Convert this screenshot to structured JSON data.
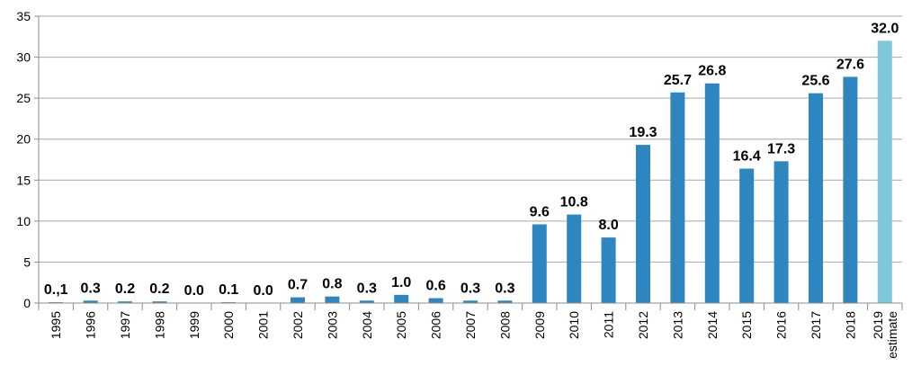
{
  "chart_data": {
    "type": "bar",
    "title": "",
    "xlabel": "",
    "ylabel": "",
    "ylim": [
      0,
      35
    ],
    "yticks": [
      "0",
      "5",
      "10",
      "15",
      "20",
      "25",
      "30",
      "35"
    ],
    "grid": true,
    "categories": [
      [
        "1995"
      ],
      [
        "1996"
      ],
      [
        "1997"
      ],
      [
        "1998"
      ],
      [
        "1999"
      ],
      [
        "2000"
      ],
      [
        "2001"
      ],
      [
        "2002"
      ],
      [
        "2003"
      ],
      [
        "2004"
      ],
      [
        "2005"
      ],
      [
        "2006"
      ],
      [
        "2007"
      ],
      [
        "2008"
      ],
      [
        "2009"
      ],
      [
        "2010"
      ],
      [
        "2011"
      ],
      [
        "2012"
      ],
      [
        "2013"
      ],
      [
        "2014"
      ],
      [
        "2015"
      ],
      [
        "2016"
      ],
      [
        "2017"
      ],
      [
        "2018"
      ],
      [
        "2019",
        "estimate"
      ]
    ],
    "values": [
      0.1,
      0.3,
      0.2,
      0.2,
      0.0,
      0.1,
      0.0,
      0.7,
      0.8,
      0.3,
      1.0,
      0.6,
      0.3,
      0.3,
      9.6,
      10.8,
      8.0,
      19.3,
      25.7,
      26.8,
      16.4,
      17.3,
      25.6,
      27.6,
      32.0
    ],
    "labels": [
      "0.,1",
      "0.3",
      "0.2",
      "0.2",
      "0.0",
      "0.1",
      "0.0",
      "0.7",
      "0.8",
      "0.3",
      "1.0",
      "0.6",
      "0.3",
      "0.3",
      "9.6",
      "10.8",
      "8.0",
      "19.3",
      "25.7",
      "26.8",
      "16.4",
      "17.3",
      "25.6",
      "27.6",
      "32.0"
    ],
    "colors": {
      "bar": "#2e86c1",
      "estimate_bar": "#7ec8dc"
    },
    "estimate_index": 24
  }
}
